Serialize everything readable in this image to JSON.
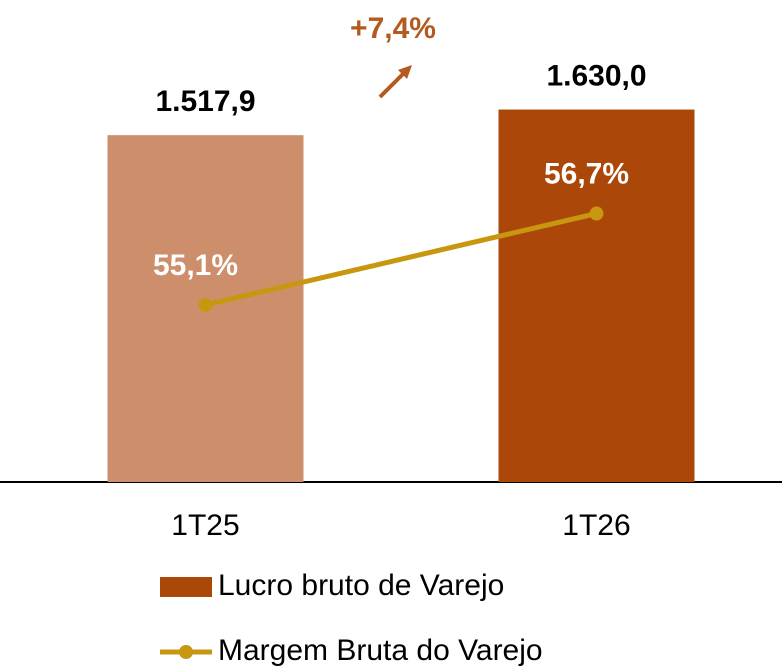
{
  "chart_data": {
    "type": "bar",
    "annotation": "+7,4%",
    "annotation_color": "#b35a1f",
    "categories": [
      "1T25",
      "1T26"
    ],
    "series": [
      {
        "name": "Lucro bruto de Varejo",
        "type": "bar",
        "color": "#ab4809",
        "colors": [
          "#cd8f6b",
          "#ab4809"
        ],
        "values": [
          1517.9,
          1630.0
        ],
        "value_labels": [
          "1.517,9",
          "1.630,0"
        ]
      },
      {
        "name": "Margem Bruta do Varejo",
        "type": "line",
        "axis": "y2",
        "color": "#c8960f",
        "values": [
          55.1,
          56.7
        ],
        "value_labels": [
          "55,1%",
          "56,7%"
        ]
      }
    ],
    "ylim": [
      0,
      2000
    ],
    "y2lim": [
      52,
      60
    ],
    "legend": "bottom"
  }
}
